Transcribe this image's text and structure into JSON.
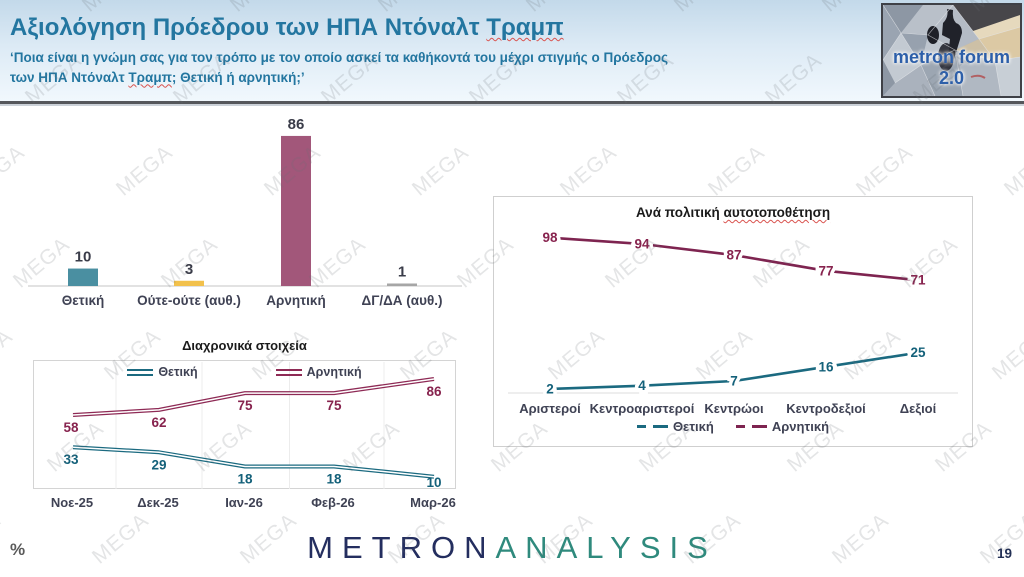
{
  "header": {
    "title_prefix": "Αξιολόγηση Πρόεδρου των ΗΠΑ Ντόναλτ ",
    "title_flagged": "Τραμπ",
    "subtitle_line1": "‘Ποια είναι η γνώμη σας για τον τρόπο με τον οποίο ασκεί τα καθήκοντά του μέχρι στιγμής ο Πρόεδρος",
    "subtitle_line2_prefix": "των ΗΠΑ Ντόναλτ ",
    "subtitle_flagged": "Τραμπ",
    "subtitle_line2_suffix": "; Θετική ή αρνητική;’",
    "logo_text": "metron forum 2.0"
  },
  "chart_data": [
    {
      "type": "bar",
      "title": "",
      "categories": [
        "Θετική",
        "Ούτε-ούτε (αυθ.)",
        "Αρνητική",
        "ΔΓ/ΔΑ (αυθ.)"
      ],
      "values": [
        10,
        3,
        86,
        1
      ],
      "colors": [
        "#4a8fa1",
        "#f2c14c",
        "#a2577a",
        "#a6a6a6"
      ],
      "value_label_color": "#3a3c49",
      "category_label_color": "#3f4254",
      "ylim": [
        0,
        100
      ],
      "grid": false,
      "legend_position": "none"
    },
    {
      "type": "line",
      "title": "Διαχρονικά στοιχεία",
      "categories": [
        "Νοε-25",
        "Δεκ-25",
        "Ιαν-26",
        "Φεβ-26",
        "Μαρ-26"
      ],
      "series": [
        {
          "name": "Θετική",
          "values": [
            33,
            29,
            18,
            18,
            10
          ],
          "color": "#1b6a80",
          "label_color": "#14617a"
        },
        {
          "name": "Αρνητική",
          "values": [
            58,
            62,
            75,
            75,
            86
          ],
          "color": "#8e2a55",
          "label_color": "#87234e"
        }
      ],
      "ylim": [
        0,
        100
      ],
      "grid": "vertical",
      "legend_position": "top"
    },
    {
      "type": "line",
      "title_prefix": "Ανά πολιτική ",
      "title_flagged": "αυτοτοποθέτηση",
      "categories": [
        "Αριστεροί",
        "Κεντροαριστεροί",
        "Κεντρώοι",
        "Κεντροδεξιοί",
        "Δεξιοί"
      ],
      "series": [
        {
          "name": "Θετική",
          "values": [
            2,
            4,
            7,
            16,
            25
          ],
          "color": "#1b6a80",
          "label_color": "#14617a"
        },
        {
          "name": "Αρνητική",
          "values": [
            98,
            94,
            87,
            77,
            71
          ],
          "color": "#7e2450",
          "label_color": "#87234e"
        }
      ],
      "ylim": [
        0,
        110
      ],
      "grid": "baseline",
      "legend_position": "bottom",
      "category_label_color": "#3f4254"
    }
  ],
  "footer": {
    "percent_label": "%",
    "brand_left": "METRON",
    "brand_right": "ANALYSIS",
    "page_number": "19"
  },
  "watermark": {
    "text": "MEGA"
  },
  "theme": {
    "title_color": "#2376a0",
    "baseline_color": "#d9d9d9",
    "gridline_color": "#ececec",
    "spellcheck_color": "#d9534f"
  }
}
